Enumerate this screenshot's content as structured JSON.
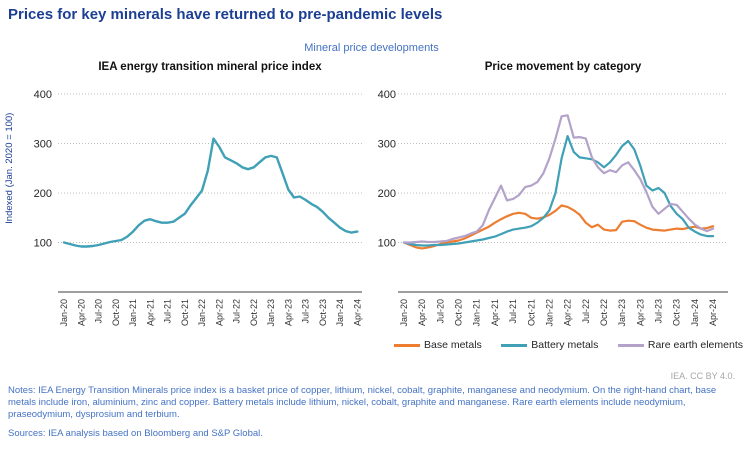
{
  "page": {
    "title": "Prices for key minerals have returned to pre-pandemic levels",
    "subtitle": "Mineral price developments",
    "attribution": "IEA. CC BY 4.0.",
    "notes": "Notes: IEA Energy Transition Minerals price index is a basket price of copper, lithium, nickel, cobalt, graphite, manganese and neodymium. On the right-hand chart, base metals include iron, aluminium, zinc and copper. Battery metals include lithium, nickel, cobalt, graphite and manganese. Rare earth elements include neodymium, praseodymium, dysprosium and terbium.",
    "sources": "Sources: IEA analysis based on Bloomberg and S&P Global."
  },
  "colors": {
    "title_blue": "#1c3f94",
    "notes_blue": "#4472c4",
    "axis_gray": "#7f7f7f",
    "gridline_gray": "#bfbfbf",
    "teal": "#3fa0b6",
    "orange": "#ed7d31",
    "purple": "#b3a2c9"
  },
  "chart_data": [
    {
      "type": "line",
      "title": "IEA energy transition mineral price index",
      "ylabel": "Indexed (Jan. 2020 = 100)",
      "xlabel": "",
      "x_start": "Jan-20",
      "x_interval": "1 month",
      "x_tick_labels": [
        "Jan-20",
        "Apr-20",
        "Jul-20",
        "Oct-20",
        "Jan-21",
        "Apr-21",
        "Jul-21",
        "Oct-21",
        "Jan-22",
        "Apr-22",
        "Jul-22",
        "Oct-22",
        "Jan-23",
        "Apr-23",
        "Jul-23",
        "Oct-23",
        "Jan-24",
        "Apr-24"
      ],
      "y_ticks": [
        100,
        200,
        300,
        400
      ],
      "ylim": [
        0,
        420
      ],
      "grid": "dotted horizontal",
      "legend_position": "none",
      "series": [
        {
          "name": "IEA energy transition mineral price index",
          "color": "#3fa0b6",
          "values": [
            100,
            97,
            94,
            92,
            92,
            93,
            95,
            98,
            101,
            103,
            105,
            112,
            122,
            135,
            144,
            147,
            143,
            140,
            140,
            142,
            150,
            158,
            175,
            190,
            205,
            245,
            310,
            293,
            272,
            266,
            260,
            252,
            248,
            252,
            262,
            272,
            275,
            272,
            240,
            207,
            191,
            193,
            186,
            178,
            172,
            162,
            150,
            140,
            130,
            123,
            120,
            122
          ]
        }
      ]
    },
    {
      "type": "line",
      "title": "Price movement by category",
      "ylabel": "",
      "xlabel": "",
      "x_start": "Jan-20",
      "x_interval": "1 month",
      "x_tick_labels": [
        "Jan-20",
        "Apr-20",
        "Jul-20",
        "Oct-20",
        "Jan-21",
        "Apr-21",
        "Jul-21",
        "Oct-21",
        "Jan-22",
        "Apr-22",
        "Jul-22",
        "Oct-22",
        "Jan-23",
        "Apr-23",
        "Jul-23",
        "Oct-23",
        "Jan-24",
        "Apr-24"
      ],
      "y_ticks": [
        100,
        200,
        300,
        400
      ],
      "ylim": [
        0,
        420
      ],
      "grid": "dotted horizontal",
      "legend_position": "bottom",
      "series": [
        {
          "name": "Base metals",
          "color": "#ed7d31",
          "values": [
            100,
            95,
            90,
            88,
            90,
            93,
            97,
            100,
            102,
            104,
            108,
            114,
            120,
            126,
            132,
            140,
            147,
            153,
            158,
            160,
            158,
            150,
            148,
            151,
            156,
            164,
            175,
            172,
            165,
            156,
            140,
            131,
            136,
            126,
            124,
            125,
            142,
            144,
            143,
            136,
            130,
            126,
            125,
            124,
            126,
            128,
            127,
            130,
            132,
            128,
            129,
            133
          ]
        },
        {
          "name": "Battery metals",
          "color": "#3fa0b6",
          "values": [
            100,
            97,
            95,
            94,
            94,
            95,
            95,
            96,
            97,
            98,
            100,
            102,
            104,
            106,
            109,
            112,
            117,
            122,
            126,
            128,
            130,
            133,
            140,
            150,
            165,
            200,
            270,
            315,
            283,
            272,
            270,
            268,
            262,
            252,
            262,
            277,
            295,
            305,
            288,
            255,
            215,
            205,
            210,
            200,
            174,
            158,
            147,
            130,
            122,
            116,
            113,
            113
          ]
        },
        {
          "name": "Rare earth elements",
          "color": "#b3a2c9",
          "values": [
            100,
            100,
            101,
            102,
            101,
            101,
            102,
            103,
            107,
            110,
            113,
            118,
            122,
            135,
            165,
            190,
            215,
            185,
            188,
            196,
            212,
            215,
            222,
            240,
            270,
            310,
            355,
            357,
            312,
            313,
            310,
            272,
            252,
            240,
            246,
            242,
            256,
            262,
            246,
            228,
            202,
            172,
            158,
            168,
            178,
            176,
            162,
            148,
            136,
            128,
            123,
            128
          ]
        }
      ]
    }
  ]
}
